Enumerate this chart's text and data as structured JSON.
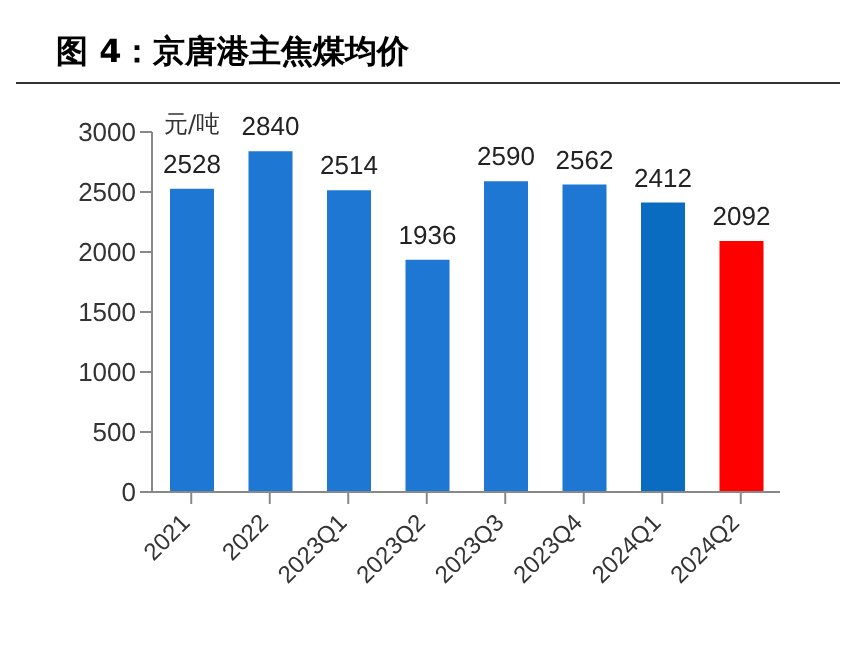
{
  "chart_data": {
    "type": "bar",
    "title": "图 4：京唐港主焦煤均价",
    "ylabel": "元/吨",
    "categories": [
      "2021",
      "2022",
      "2023Q1",
      "2023Q2",
      "2023Q3",
      "2023Q4",
      "2024Q1",
      "2024Q2"
    ],
    "values": [
      2528,
      2840,
      2514,
      1936,
      2590,
      2562,
      2412,
      2092
    ],
    "colors": [
      "#1f77d4",
      "#1f77d4",
      "#1f77d4",
      "#1f77d4",
      "#1f77d4",
      "#1f77d4",
      "#0a6cc0",
      "#ff0000"
    ],
    "ylim": [
      0,
      3000
    ],
    "yticks": [
      0,
      500,
      1000,
      1500,
      2000,
      2500,
      3000
    ],
    "data_labels": true,
    "grid": false,
    "legend": false
  }
}
